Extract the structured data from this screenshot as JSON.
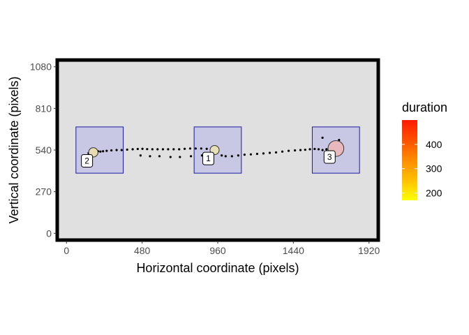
{
  "chart_data": {
    "type": "scatter",
    "xlabel": "Horizontal coordinate (pixels)",
    "ylabel": "Vertical coordinate (pixels)",
    "xlim": [
      -50,
      1970
    ],
    "ylim": [
      -35,
      1115
    ],
    "x_ticks": [
      0,
      480,
      960,
      1440,
      1920
    ],
    "y_ticks": [
      0,
      270,
      540,
      810,
      1080
    ],
    "x_tick_labels": [
      "0",
      "480",
      "960",
      "1440",
      "1920"
    ],
    "y_tick_labels": [
      "0",
      "270",
      "540",
      "810",
      "1080"
    ],
    "grid": false,
    "background": "#e0e0e0",
    "aois": [
      {
        "xmin": 60,
        "xmax": 360,
        "ymin": 390,
        "ymax": 690,
        "fill": "#c8c8e4",
        "stroke": "#1a1aa0"
      },
      {
        "xmin": 810,
        "xmax": 1110,
        "ymin": 390,
        "ymax": 690,
        "fill": "#c8c8e4",
        "stroke": "#1a1aa0"
      },
      {
        "xmin": 1560,
        "xmax": 1860,
        "ymin": 390,
        "ymax": 690,
        "fill": "#c8c8e4",
        "stroke": "#1a1aa0"
      }
    ],
    "fixations": [
      {
        "label": "1",
        "x": 940,
        "y": 540,
        "duration": 180,
        "color": "#e6e0b8"
      },
      {
        "label": "2",
        "x": 170,
        "y": 525,
        "duration": 190,
        "color": "#e6dcb0"
      },
      {
        "label": "3",
        "x": 1710,
        "y": 550,
        "duration": 460,
        "color": "#e8b8bc"
      }
    ],
    "fixation_label_offsets": [
      {
        "x": -40,
        "y": -55
      },
      {
        "x": -40,
        "y": -55
      },
      {
        "x": -40,
        "y": -55
      }
    ],
    "gaze_points": [
      {
        "x": 140,
        "y": 520
      },
      {
        "x": 152,
        "y": 528
      },
      {
        "x": 162,
        "y": 522
      },
      {
        "x": 172,
        "y": 528
      },
      {
        "x": 185,
        "y": 530
      },
      {
        "x": 200,
        "y": 532
      },
      {
        "x": 215,
        "y": 530
      },
      {
        "x": 232,
        "y": 532
      },
      {
        "x": 255,
        "y": 535
      },
      {
        "x": 285,
        "y": 538
      },
      {
        "x": 318,
        "y": 540
      },
      {
        "x": 350,
        "y": 540
      },
      {
        "x": 385,
        "y": 543
      },
      {
        "x": 420,
        "y": 545
      },
      {
        "x": 452,
        "y": 547
      },
      {
        "x": 482,
        "y": 548
      },
      {
        "x": 512,
        "y": 546
      },
      {
        "x": 545,
        "y": 545
      },
      {
        "x": 578,
        "y": 545
      },
      {
        "x": 612,
        "y": 545
      },
      {
        "x": 645,
        "y": 545
      },
      {
        "x": 680,
        "y": 545
      },
      {
        "x": 715,
        "y": 545
      },
      {
        "x": 750,
        "y": 548
      },
      {
        "x": 785,
        "y": 550
      },
      {
        "x": 820,
        "y": 550
      },
      {
        "x": 855,
        "y": 550
      },
      {
        "x": 890,
        "y": 548
      },
      {
        "x": 920,
        "y": 545
      },
      {
        "x": 945,
        "y": 542
      },
      {
        "x": 1010,
        "y": 500
      },
      {
        "x": 1050,
        "y": 500
      },
      {
        "x": 1090,
        "y": 505
      },
      {
        "x": 1130,
        "y": 510
      },
      {
        "x": 1170,
        "y": 512
      },
      {
        "x": 1210,
        "y": 515
      },
      {
        "x": 1250,
        "y": 518
      },
      {
        "x": 1290,
        "y": 522
      },
      {
        "x": 1330,
        "y": 525
      },
      {
        "x": 1370,
        "y": 530
      },
      {
        "x": 1410,
        "y": 535
      },
      {
        "x": 1450,
        "y": 538
      },
      {
        "x": 1485,
        "y": 540
      },
      {
        "x": 1515,
        "y": 542
      },
      {
        "x": 1545,
        "y": 545
      },
      {
        "x": 1575,
        "y": 547
      },
      {
        "x": 1600,
        "y": 545
      },
      {
        "x": 1625,
        "y": 540
      },
      {
        "x": 1650,
        "y": 545
      },
      {
        "x": 1680,
        "y": 548
      },
      {
        "x": 1700,
        "y": 545
      },
      {
        "x": 1715,
        "y": 550
      },
      {
        "x": 1728,
        "y": 560
      },
      {
        "x": 1625,
        "y": 620
      },
      {
        "x": 1730,
        "y": 605
      },
      {
        "x": 470,
        "y": 505
      },
      {
        "x": 530,
        "y": 500
      },
      {
        "x": 590,
        "y": 500
      },
      {
        "x": 660,
        "y": 495
      },
      {
        "x": 720,
        "y": 495
      },
      {
        "x": 790,
        "y": 500
      },
      {
        "x": 860,
        "y": 505
      },
      {
        "x": 985,
        "y": 505
      }
    ],
    "legend": {
      "title": "duration",
      "placement": "right",
      "min": 170,
      "max": 500,
      "ticks": [
        200,
        300,
        400
      ],
      "tick_labels": [
        "200",
        "300",
        "400"
      ],
      "colors": [
        "#ffff00",
        "#ffc000",
        "#ff8c00",
        "#ff5000",
        "#ff1a00"
      ]
    }
  }
}
